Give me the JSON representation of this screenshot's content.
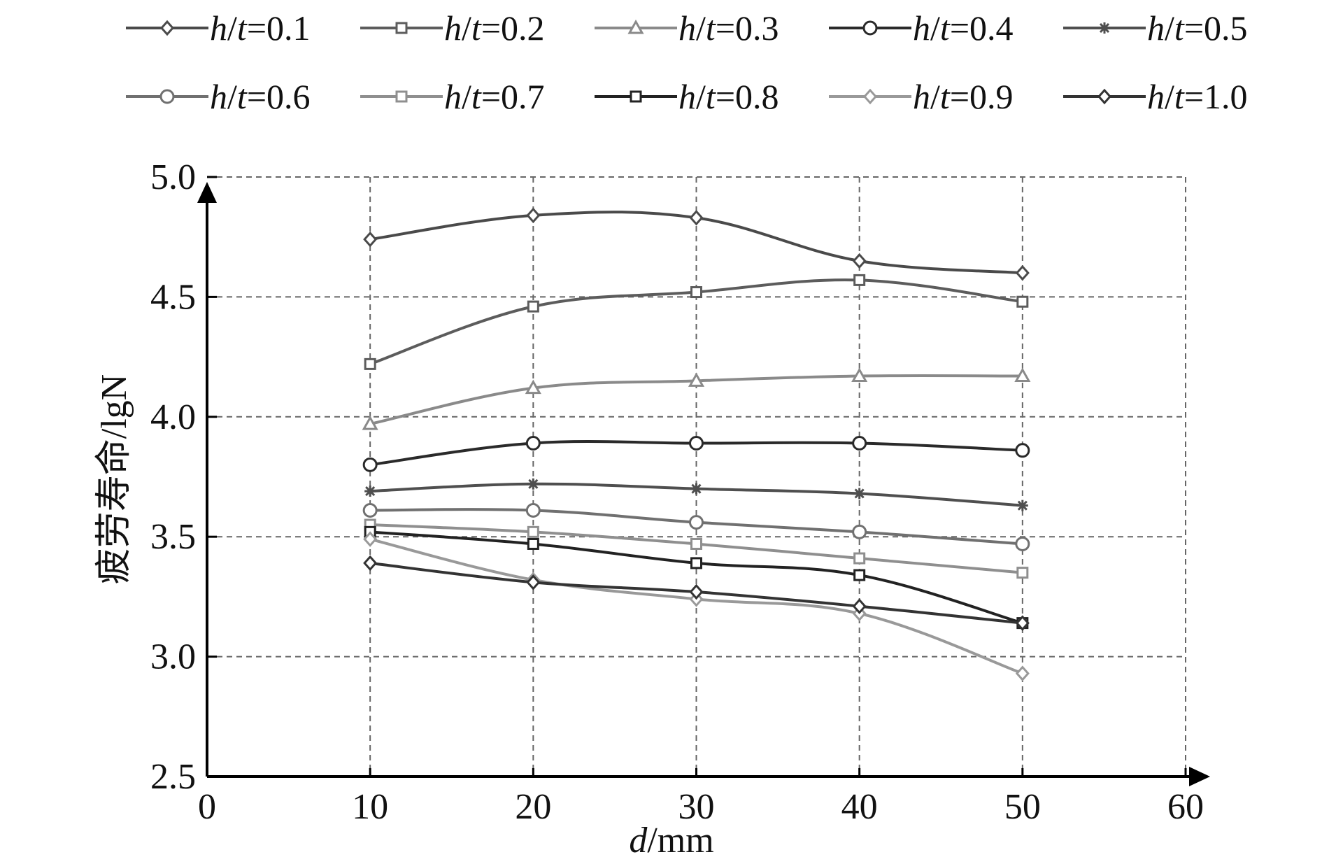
{
  "chart_data": {
    "type": "line",
    "xlabel_var": "d",
    "xlabel_unit": "/mm",
    "ylabel": "疲劳寿命/lgN",
    "xlim": [
      0,
      60
    ],
    "ylim": [
      2.5,
      5.0
    ],
    "xticks": [
      "0",
      "10",
      "20",
      "30",
      "40",
      "50",
      "60"
    ],
    "yticks": [
      "2.5",
      "3.0",
      "3.5",
      "4.0",
      "4.5",
      "5.0"
    ],
    "grid": true,
    "legend_position": "top",
    "legend_var": "h/t",
    "x": [
      10,
      20,
      30,
      40,
      50
    ],
    "series": [
      {
        "name": "h/t=0.1",
        "value_label": "=0.1",
        "marker": "diamond",
        "color": "#4a4a4a",
        "values": [
          4.74,
          4.84,
          4.83,
          4.65,
          4.6
        ]
      },
      {
        "name": "h/t=0.2",
        "value_label": "=0.2",
        "marker": "square",
        "color": "#5c5c5c",
        "values": [
          4.22,
          4.46,
          4.52,
          4.57,
          4.48
        ]
      },
      {
        "name": "h/t=0.3",
        "value_label": "=0.3",
        "marker": "triangle",
        "color": "#8a8a8a",
        "values": [
          3.97,
          4.12,
          4.15,
          4.17,
          4.17
        ]
      },
      {
        "name": "h/t=0.4",
        "value_label": "=0.4",
        "marker": "circle",
        "color": "#2a2a2a",
        "values": [
          3.8,
          3.89,
          3.89,
          3.89,
          3.86
        ]
      },
      {
        "name": "h/t=0.5",
        "value_label": "=0.5",
        "marker": "star",
        "color": "#4f4f4f",
        "values": [
          3.69,
          3.72,
          3.7,
          3.68,
          3.63
        ]
      },
      {
        "name": "h/t=0.6",
        "value_label": "=0.6",
        "marker": "circle",
        "color": "#707070",
        "values": [
          3.61,
          3.61,
          3.56,
          3.52,
          3.47
        ]
      },
      {
        "name": "h/t=0.7",
        "value_label": "=0.7",
        "marker": "square",
        "color": "#8f8f8f",
        "values": [
          3.55,
          3.52,
          3.47,
          3.41,
          3.35
        ]
      },
      {
        "name": "h/t=0.8",
        "value_label": "=0.8",
        "marker": "square",
        "color": "#222222",
        "values": [
          3.52,
          3.47,
          3.39,
          3.34,
          3.14
        ]
      },
      {
        "name": "h/t=0.9",
        "value_label": "=0.9",
        "marker": "diamond",
        "color": "#999999",
        "values": [
          3.49,
          3.32,
          3.24,
          3.18,
          2.93
        ]
      },
      {
        "name": "h/t=1.0",
        "value_label": "=1.0",
        "marker": "diamond",
        "color": "#333333",
        "values": [
          3.39,
          3.31,
          3.27,
          3.21,
          3.14
        ]
      }
    ]
  }
}
